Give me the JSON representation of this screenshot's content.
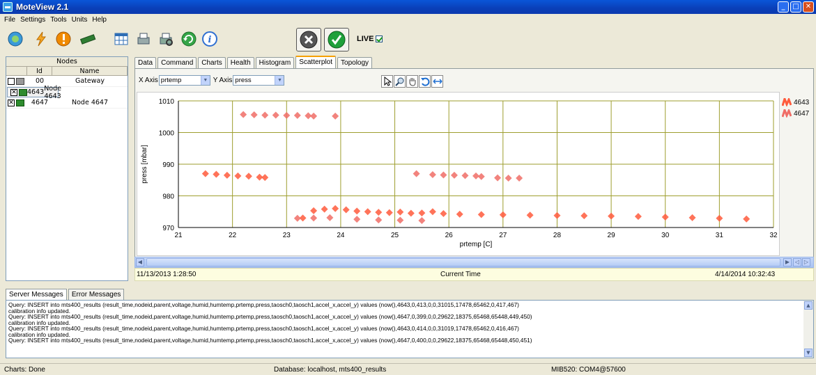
{
  "window": {
    "title": "MoteView 2.1"
  },
  "menu": [
    "File",
    "Settings",
    "Tools",
    "Units",
    "Help"
  ],
  "toolbar": {
    "live_label": "LIVE",
    "live_checked": true
  },
  "nodes": {
    "header": "Nodes",
    "col_id": "Id",
    "col_name": "Name",
    "rows": [
      {
        "id": "00",
        "name": "Gateway",
        "checked": false
      },
      {
        "id": "4643",
        "name": "Node 4643",
        "checked": true
      },
      {
        "id": "4647",
        "name": "Node 4647",
        "checked": true
      }
    ]
  },
  "tabs": [
    "Data",
    "Command",
    "Charts",
    "Health",
    "Histogram",
    "Scatterplot",
    "Topology"
  ],
  "active_tab": "Scatterplot",
  "axis_controls": {
    "x_label": "X Axis",
    "x_value": "prtemp",
    "y_label": "Y Axis",
    "y_value": "press"
  },
  "chart_data": {
    "type": "scatter",
    "xlabel": "prtemp [C]",
    "ylabel": "press [mbar]",
    "xlim": [
      21,
      32
    ],
    "ylim": [
      970,
      1010
    ],
    "xticks": [
      21,
      22,
      23,
      24,
      25,
      26,
      27,
      28,
      29,
      30,
      31,
      32
    ],
    "yticks": [
      970,
      980,
      990,
      1000,
      1010
    ],
    "grid": true,
    "legend_position": "right",
    "series": [
      {
        "name": "4643",
        "color": "#ff5b3c",
        "points": [
          [
            21.5,
            987
          ],
          [
            21.7,
            986.8
          ],
          [
            21.9,
            986.5
          ],
          [
            22.1,
            986.3
          ],
          [
            22.3,
            986.2
          ],
          [
            22.5,
            985.9
          ],
          [
            22.6,
            985.8
          ],
          [
            23.3,
            973
          ],
          [
            23.5,
            975.3
          ],
          [
            23.7,
            975.8
          ],
          [
            23.9,
            976
          ],
          [
            24.1,
            975.6
          ],
          [
            24.3,
            975.2
          ],
          [
            24.5,
            975
          ],
          [
            24.7,
            974.8
          ],
          [
            24.9,
            974.7
          ],
          [
            25.1,
            974.9
          ],
          [
            25.3,
            974.5
          ],
          [
            25.5,
            974.6
          ],
          [
            25.7,
            975
          ],
          [
            25.9,
            974.4
          ],
          [
            26.2,
            974.2
          ],
          [
            26.6,
            974.1
          ],
          [
            27.0,
            974
          ],
          [
            27.5,
            973.9
          ],
          [
            28.0,
            973.8
          ],
          [
            28.5,
            973.7
          ],
          [
            29.0,
            973.6
          ],
          [
            29.5,
            973.5
          ],
          [
            30.0,
            973.3
          ],
          [
            30.5,
            973.1
          ],
          [
            31.0,
            972.9
          ],
          [
            31.5,
            972.7
          ]
        ]
      },
      {
        "name": "4647",
        "color": "#f06d66",
        "points": [
          [
            22.2,
            1005.7
          ],
          [
            22.4,
            1005.6
          ],
          [
            22.6,
            1005.5
          ],
          [
            22.8,
            1005.5
          ],
          [
            23.0,
            1005.4
          ],
          [
            23.2,
            1005.4
          ],
          [
            23.4,
            1005.3
          ],
          [
            23.5,
            1005.2
          ],
          [
            23.9,
            1005.2
          ],
          [
            25.4,
            987
          ],
          [
            25.7,
            986.7
          ],
          [
            25.9,
            986.6
          ],
          [
            26.1,
            986.5
          ],
          [
            26.3,
            986.4
          ],
          [
            26.5,
            986.3
          ],
          [
            26.6,
            986.1
          ],
          [
            26.9,
            985.7
          ],
          [
            27.1,
            985.6
          ],
          [
            27.3,
            985.6
          ],
          [
            23.2,
            972.9
          ],
          [
            23.5,
            973
          ],
          [
            23.8,
            973.1
          ],
          [
            24.3,
            972.6
          ],
          [
            24.7,
            972.4
          ],
          [
            25.1,
            972.3
          ],
          [
            25.5,
            972.2
          ]
        ]
      }
    ]
  },
  "timebar": {
    "start": "11/13/2013 1:28:50",
    "center": "Current Time",
    "end": "4/14/2014 10:32:43"
  },
  "message_tabs": [
    "Server Messages",
    "Error Messages"
  ],
  "messages": [
    "Query: INSERT into mts400_results (result_time,nodeid,parent,voltage,humid,humtemp,prtemp,press,taosch0,taosch1,accel_x,accel_y)  values (now(),4643,0,413,0,0,31015,17478,65462,0,417,467)",
    "calibration info updated.",
    "Query: INSERT into mts400_results (result_time,nodeid,parent,voltage,humid,humtemp,prtemp,press,taosch0,taosch1,accel_x,accel_y)  values (now(),4647,0,399,0,0,29622,18375,65468,65448,449,450)",
    "calibration info updated.",
    "Query: INSERT into mts400_results (result_time,nodeid,parent,voltage,humid,humtemp,prtemp,press,taosch0,taosch1,accel_x,accel_y)  values (now(),4643,0,414,0,0,31019,17478,65462,0,416,467)",
    "calibration info updated.",
    "Query: INSERT into mts400_results (result_time,nodeid,parent,voltage,humid,humtemp,prtemp,press,taosch0,taosch1,accel_x,accel_y)  values (now(),4647,0,400,0,0,29622,18375,65468,65448,450,451)"
  ],
  "status": {
    "left": "Charts: Done",
    "center": "Database: localhost, mts400_results",
    "right": "MIB520: COM4@57600"
  }
}
